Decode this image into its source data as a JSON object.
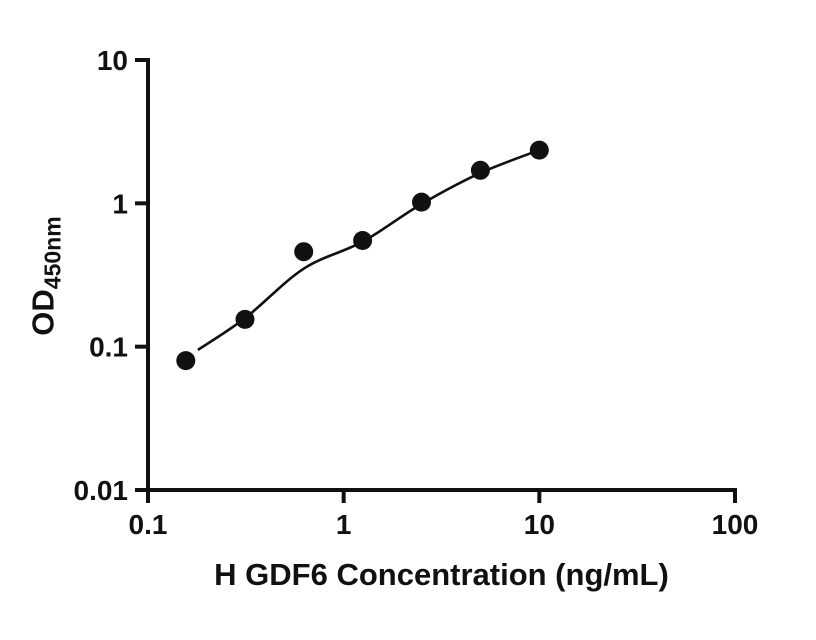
{
  "figure": {
    "background": "#ffffff"
  },
  "chart_data": {
    "type": "scatter",
    "title": "",
    "xlabel": "H GDF6 Concentration (ng/mL)",
    "ylabel_main": "OD",
    "ylabel_sub": "450nm",
    "x_scale": "log",
    "y_scale": "log",
    "xlim": [
      0.1,
      100
    ],
    "ylim": [
      0.01,
      10
    ],
    "x_ticks": [
      0.1,
      1,
      10,
      100
    ],
    "x_tick_labels": [
      "0.1",
      "1",
      "10",
      "100"
    ],
    "y_ticks": [
      0.01,
      0.1,
      1,
      10
    ],
    "y_tick_labels": [
      "0.01",
      "0.1",
      "1",
      "10"
    ],
    "grid": false,
    "legend": "none",
    "marker_color": "#111111",
    "line_color": "#111111",
    "axis_color": "#111111",
    "marker_radius": 9.5,
    "points": [
      {
        "x": 0.156,
        "y": 0.08
      },
      {
        "x": 0.313,
        "y": 0.155
      },
      {
        "x": 0.625,
        "y": 0.46
      },
      {
        "x": 1.25,
        "y": 0.55
      },
      {
        "x": 2.5,
        "y": 1.02
      },
      {
        "x": 5,
        "y": 1.7
      },
      {
        "x": 10,
        "y": 2.35
      }
    ],
    "fit_curve": [
      {
        "x": 0.18,
        "y": 0.095
      },
      {
        "x": 0.313,
        "y": 0.158
      },
      {
        "x": 0.625,
        "y": 0.35
      },
      {
        "x": 1.25,
        "y": 0.54
      },
      {
        "x": 2.5,
        "y": 0.99
      },
      {
        "x": 5,
        "y": 1.63
      },
      {
        "x": 10,
        "y": 2.35
      }
    ]
  }
}
